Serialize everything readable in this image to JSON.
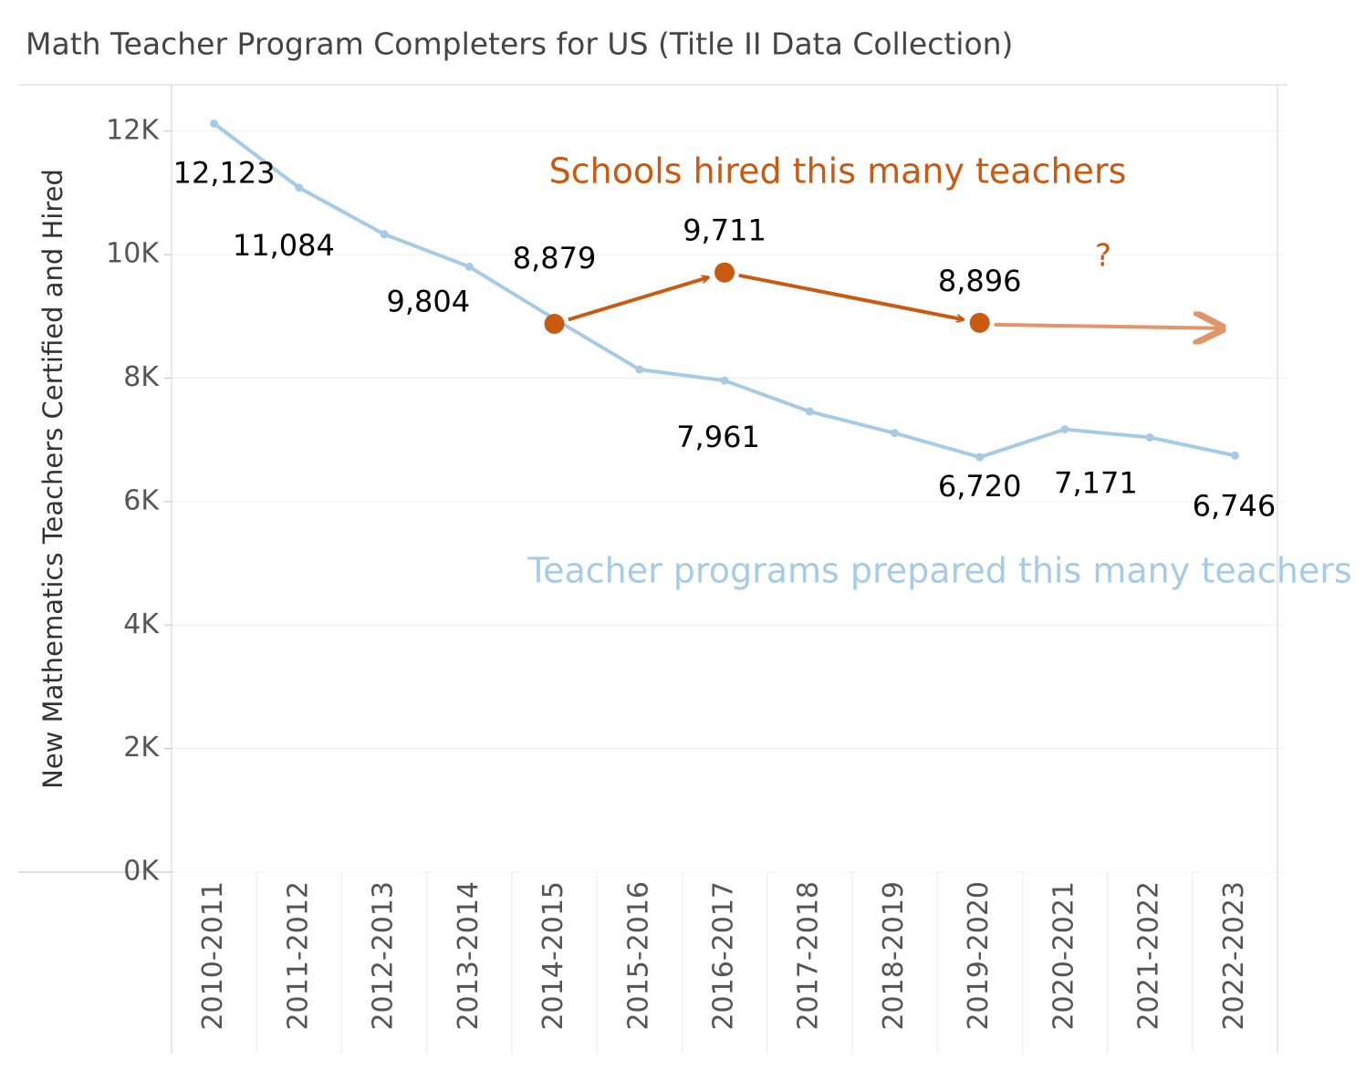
{
  "chart_data": {
    "type": "line",
    "title": "Math Teacher Program Completers for US (Title II Data Collection)",
    "ylabel": "New Mathematics Teachers Certified and Hired",
    "categories": [
      "2010-2011",
      "2011-2012",
      "2012-2013",
      "2013-2014",
      "2014-2015",
      "2015-2016",
      "2016-2017",
      "2017-2018",
      "2018-2019",
      "2019-2020",
      "2020-2021",
      "2021-2022",
      "2022-2023"
    ],
    "series": [
      {
        "name": "Teacher programs prepared this many teachers",
        "color": "#a6cbe6",
        "values": [
          12123,
          11084,
          10330,
          9804,
          8960,
          8140,
          7961,
          7460,
          7110,
          6720,
          7171,
          7040,
          6746
        ],
        "value_labels": [
          "12,123",
          "11,084",
          null,
          "9,804",
          null,
          null,
          "7,961",
          null,
          null,
          "6,720",
          "7,171",
          null,
          "6,746"
        ]
      },
      {
        "name": "Schools hired this many teachers",
        "color": "#c85a12",
        "values": [
          null,
          null,
          null,
          null,
          8879,
          null,
          9711,
          null,
          null,
          8896,
          null,
          null,
          null
        ],
        "value_labels": [
          null,
          null,
          null,
          null,
          "8,879",
          null,
          "9,711",
          null,
          null,
          "8,896",
          null,
          null,
          null
        ]
      }
    ],
    "annotations": [
      "?"
    ],
    "ylim": [
      0,
      12750
    ],
    "yticks": [
      {
        "value": 0,
        "label": "0K"
      },
      {
        "value": 2000,
        "label": "2K"
      },
      {
        "value": 4000,
        "label": "4K"
      },
      {
        "value": 6000,
        "label": "6K"
      },
      {
        "value": 8000,
        "label": "8K"
      },
      {
        "value": 10000,
        "label": "10K"
      },
      {
        "value": 12000,
        "label": "12K"
      }
    ],
    "grid": true
  }
}
